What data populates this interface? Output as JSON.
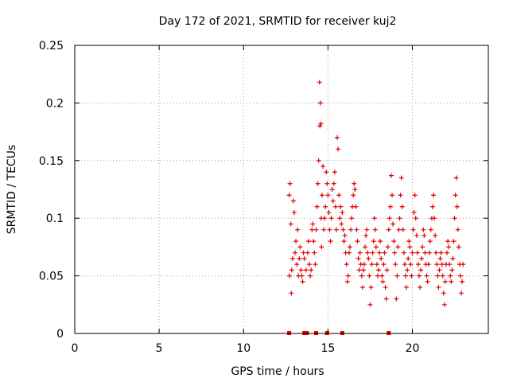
{
  "chart_data": {
    "type": "scatter",
    "title": "Day 172 of 2021, SRMTID for receiver kuj2",
    "xlabel": "GPS time / hours",
    "ylabel": "SRMTID / TECUs",
    "xlim": [
      0,
      24.5
    ],
    "ylim": [
      0,
      0.25
    ],
    "x_ticks": [
      0,
      5,
      10,
      15,
      20
    ],
    "x_tick_labels": [
      "0",
      "5",
      "10",
      "15",
      "20"
    ],
    "y_ticks": [
      0,
      0.05,
      0.1,
      0.15,
      0.2,
      0.25
    ],
    "y_tick_labels": [
      "0",
      "0.05",
      "0.1",
      "0.15",
      "0.2",
      "0.25"
    ],
    "grid": true,
    "marker": "plus",
    "series_color": "#e00000",
    "zero_points_x": [
      12.7,
      13.6,
      13.75,
      14.3,
      14.95,
      15.85,
      18.6
    ],
    "series": [
      {
        "name": "kuj2",
        "points": [
          [
            12.7,
            0.12
          ],
          [
            12.72,
            0.05
          ],
          [
            12.75,
            0.13
          ],
          [
            12.8,
            0.095
          ],
          [
            12.83,
            0.035
          ],
          [
            12.85,
            0.055
          ],
          [
            12.9,
            0.065
          ],
          [
            12.95,
            0.115
          ],
          [
            13.0,
            0.105
          ],
          [
            13.05,
            0.07
          ],
          [
            13.1,
            0.08
          ],
          [
            13.15,
            0.06
          ],
          [
            13.2,
            0.09
          ],
          [
            13.25,
            0.05
          ],
          [
            13.3,
            0.065
          ],
          [
            13.35,
            0.075
          ],
          [
            13.4,
            0.055
          ],
          [
            13.45,
            0.05
          ],
          [
            13.5,
            0.045
          ],
          [
            13.55,
            0.07
          ],
          [
            13.6,
            0.065
          ],
          [
            13.7,
            0.055
          ],
          [
            13.8,
            0.07
          ],
          [
            13.85,
            0.08
          ],
          [
            13.9,
            0.06
          ],
          [
            13.95,
            0.05
          ],
          [
            14.0,
            0.055
          ],
          [
            14.05,
            0.09
          ],
          [
            14.1,
            0.095
          ],
          [
            14.15,
            0.08
          ],
          [
            14.2,
            0.07
          ],
          [
            14.25,
            0.06
          ],
          [
            14.3,
            0.09
          ],
          [
            14.35,
            0.11
          ],
          [
            14.4,
            0.13
          ],
          [
            14.45,
            0.15
          ],
          [
            14.5,
            0.218
          ],
          [
            14.52,
            0.18
          ],
          [
            14.55,
            0.2
          ],
          [
            14.58,
            0.182
          ],
          [
            14.6,
            0.1
          ],
          [
            14.62,
            0.075
          ],
          [
            14.65,
            0.12
          ],
          [
            14.7,
            0.145
          ],
          [
            14.75,
            0.09
          ],
          [
            14.8,
            0.1
          ],
          [
            14.85,
            0.11
          ],
          [
            14.9,
            0.14
          ],
          [
            14.95,
            0.13
          ],
          [
            15.0,
            0.12
          ],
          [
            15.05,
            0.105
          ],
          [
            15.1,
            0.09
          ],
          [
            15.15,
            0.08
          ],
          [
            15.2,
            0.1
          ],
          [
            15.25,
            0.125
          ],
          [
            15.3,
            0.115
          ],
          [
            15.35,
            0.13
          ],
          [
            15.4,
            0.14
          ],
          [
            15.45,
            0.11
          ],
          [
            15.5,
            0.09
          ],
          [
            15.55,
            0.17
          ],
          [
            15.6,
            0.16
          ],
          [
            15.65,
            0.12
          ],
          [
            15.7,
            0.1
          ],
          [
            15.75,
            0.11
          ],
          [
            15.8,
            0.095
          ],
          [
            15.85,
            0.105
          ],
          [
            15.9,
            0.09
          ],
          [
            15.95,
            0.08
          ],
          [
            16.0,
            0.085
          ],
          [
            16.05,
            0.07
          ],
          [
            16.1,
            0.06
          ],
          [
            16.15,
            0.045
          ],
          [
            16.2,
            0.05
          ],
          [
            16.25,
            0.07
          ],
          [
            16.3,
            0.075
          ],
          [
            16.35,
            0.09
          ],
          [
            16.4,
            0.1
          ],
          [
            16.45,
            0.11
          ],
          [
            16.5,
            0.12
          ],
          [
            16.55,
            0.13
          ],
          [
            16.6,
            0.125
          ],
          [
            16.65,
            0.11
          ],
          [
            16.7,
            0.09
          ],
          [
            16.75,
            0.08
          ],
          [
            16.8,
            0.065
          ],
          [
            16.85,
            0.055
          ],
          [
            16.9,
            0.07
          ],
          [
            16.95,
            0.06
          ],
          [
            17.0,
            0.05
          ],
          [
            17.05,
            0.04
          ],
          [
            17.1,
            0.055
          ],
          [
            17.15,
            0.06
          ],
          [
            17.2,
            0.075
          ],
          [
            17.25,
            0.085
          ],
          [
            17.3,
            0.09
          ],
          [
            17.35,
            0.07
          ],
          [
            17.4,
            0.065
          ],
          [
            17.45,
            0.05
          ],
          [
            17.5,
            0.025
          ],
          [
            17.55,
            0.04
          ],
          [
            17.6,
            0.06
          ],
          [
            17.65,
            0.07
          ],
          [
            17.7,
            0.08
          ],
          [
            17.75,
            0.1
          ],
          [
            17.8,
            0.09
          ],
          [
            17.85,
            0.075
          ],
          [
            17.9,
            0.06
          ],
          [
            17.95,
            0.05
          ],
          [
            18.0,
            0.055
          ],
          [
            18.05,
            0.07
          ],
          [
            18.1,
            0.08
          ],
          [
            18.15,
            0.065
          ],
          [
            18.2,
            0.05
          ],
          [
            18.25,
            0.045
          ],
          [
            18.3,
            0.06
          ],
          [
            18.35,
            0.07
          ],
          [
            18.4,
            0.04
          ],
          [
            18.45,
            0.03
          ],
          [
            18.5,
            0.055
          ],
          [
            18.55,
            0.075
          ],
          [
            18.6,
            0.09
          ],
          [
            18.65,
            0.1
          ],
          [
            18.7,
            0.11
          ],
          [
            18.75,
            0.137
          ],
          [
            18.8,
            0.12
          ],
          [
            18.85,
            0.095
          ],
          [
            18.9,
            0.08
          ],
          [
            18.95,
            0.07
          ],
          [
            19.0,
            0.06
          ],
          [
            19.05,
            0.03
          ],
          [
            19.1,
            0.05
          ],
          [
            19.15,
            0.075
          ],
          [
            19.2,
            0.09
          ],
          [
            19.25,
            0.1
          ],
          [
            19.3,
            0.12
          ],
          [
            19.35,
            0.135
          ],
          [
            19.4,
            0.11
          ],
          [
            19.45,
            0.09
          ],
          [
            19.5,
            0.07
          ],
          [
            19.55,
            0.06
          ],
          [
            19.6,
            0.05
          ],
          [
            19.65,
            0.04
          ],
          [
            19.7,
            0.055
          ],
          [
            19.75,
            0.065
          ],
          [
            19.8,
            0.08
          ],
          [
            19.85,
            0.075
          ],
          [
            19.9,
            0.06
          ],
          [
            19.95,
            0.05
          ],
          [
            20.0,
            0.07
          ],
          [
            20.05,
            0.09
          ],
          [
            20.1,
            0.105
          ],
          [
            20.15,
            0.12
          ],
          [
            20.2,
            0.1
          ],
          [
            20.25,
            0.085
          ],
          [
            20.3,
            0.07
          ],
          [
            20.35,
            0.06
          ],
          [
            20.4,
            0.05
          ],
          [
            20.45,
            0.04
          ],
          [
            20.5,
            0.055
          ],
          [
            20.55,
            0.065
          ],
          [
            20.6,
            0.075
          ],
          [
            20.65,
            0.09
          ],
          [
            20.7,
            0.085
          ],
          [
            20.75,
            0.07
          ],
          [
            20.8,
            0.06
          ],
          [
            20.85,
            0.05
          ],
          [
            20.9,
            0.045
          ],
          [
            20.95,
            0.06
          ],
          [
            21.0,
            0.07
          ],
          [
            21.05,
            0.08
          ],
          [
            21.1,
            0.09
          ],
          [
            21.15,
            0.1
          ],
          [
            21.2,
            0.11
          ],
          [
            21.25,
            0.12
          ],
          [
            21.3,
            0.1
          ],
          [
            21.35,
            0.085
          ],
          [
            21.4,
            0.07
          ],
          [
            21.45,
            0.06
          ],
          [
            21.5,
            0.05
          ],
          [
            21.55,
            0.04
          ],
          [
            21.6,
            0.055
          ],
          [
            21.65,
            0.065
          ],
          [
            21.7,
            0.07
          ],
          [
            21.75,
            0.06
          ],
          [
            21.8,
            0.05
          ],
          [
            21.85,
            0.035
          ],
          [
            21.9,
            0.025
          ],
          [
            21.95,
            0.045
          ],
          [
            22.0,
            0.06
          ],
          [
            22.05,
            0.07
          ],
          [
            22.1,
            0.08
          ],
          [
            22.15,
            0.075
          ],
          [
            22.2,
            0.06
          ],
          [
            22.25,
            0.05
          ],
          [
            22.3,
            0.045
          ],
          [
            22.35,
            0.055
          ],
          [
            22.4,
            0.065
          ],
          [
            22.45,
            0.08
          ],
          [
            22.5,
            0.1
          ],
          [
            22.55,
            0.12
          ],
          [
            22.6,
            0.135
          ],
          [
            22.65,
            0.11
          ],
          [
            22.7,
            0.09
          ],
          [
            22.75,
            0.075
          ],
          [
            22.8,
            0.06
          ],
          [
            22.85,
            0.05
          ],
          [
            22.9,
            0.035
          ],
          [
            22.95,
            0.045
          ],
          [
            23.0,
            0.06
          ]
        ]
      }
    ]
  }
}
